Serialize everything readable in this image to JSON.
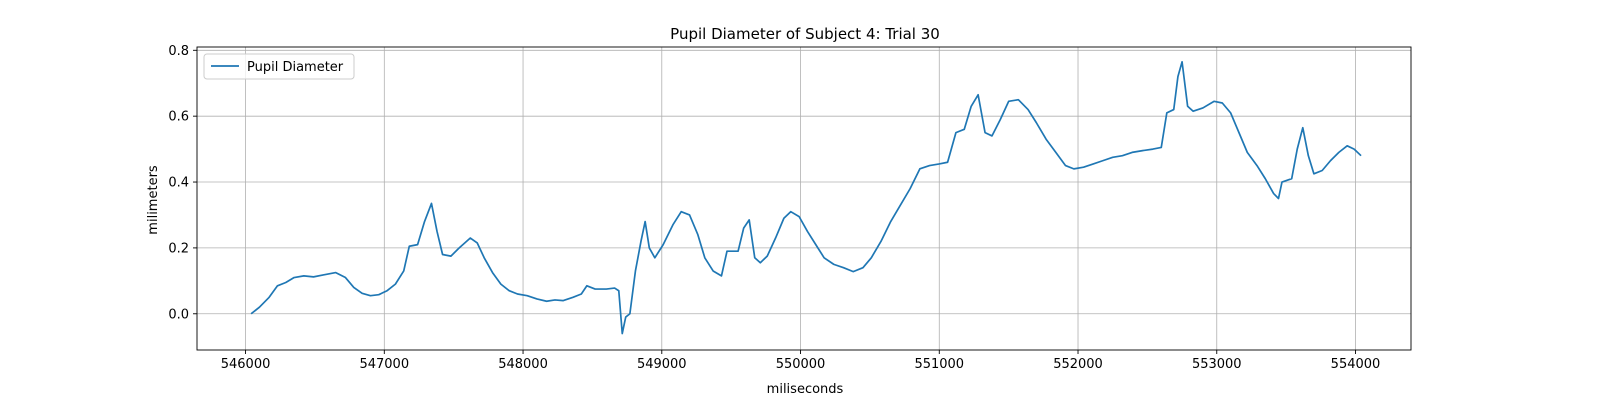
{
  "chart_data": {
    "type": "line",
    "title": "Pupil Diameter of Subject 4: Trial 30",
    "xlabel": "miliseconds",
    "ylabel": "milimeters",
    "xlim": [
      545650,
      554400
    ],
    "ylim": [
      -0.11,
      0.81
    ],
    "xticks": [
      546000,
      547000,
      548000,
      549000,
      550000,
      551000,
      552000,
      553000,
      554000
    ],
    "xtick_labels": [
      "546000",
      "547000",
      "548000",
      "549000",
      "550000",
      "551000",
      "552000",
      "553000",
      "554000"
    ],
    "yticks": [
      0.0,
      0.2,
      0.4,
      0.6,
      0.8
    ],
    "ytick_labels": [
      "0.0",
      "0.2",
      "0.4",
      "0.6",
      "0.8"
    ],
    "grid": true,
    "legend": {
      "placement": "top-left",
      "entries": [
        "Pupil Diameter"
      ]
    },
    "series": [
      {
        "name": "Pupil Diameter",
        "color": "#1f77b4",
        "points": [
          [
            546040,
            0.0
          ],
          [
            546100,
            0.02
          ],
          [
            546170,
            0.05
          ],
          [
            546230,
            0.085
          ],
          [
            546290,
            0.095
          ],
          [
            546350,
            0.11
          ],
          [
            546420,
            0.115
          ],
          [
            546490,
            0.112
          ],
          [
            546560,
            0.118
          ],
          [
            546650,
            0.125
          ],
          [
            546720,
            0.11
          ],
          [
            546780,
            0.08
          ],
          [
            546840,
            0.062
          ],
          [
            546900,
            0.055
          ],
          [
            546960,
            0.058
          ],
          [
            547020,
            0.07
          ],
          [
            547080,
            0.09
          ],
          [
            547140,
            0.13
          ],
          [
            547180,
            0.205
          ],
          [
            547240,
            0.21
          ],
          [
            547290,
            0.28
          ],
          [
            547340,
            0.335
          ],
          [
            547380,
            0.25
          ],
          [
            547420,
            0.18
          ],
          [
            547480,
            0.175
          ],
          [
            547540,
            0.2
          ],
          [
            547620,
            0.23
          ],
          [
            547670,
            0.215
          ],
          [
            547720,
            0.17
          ],
          [
            547780,
            0.125
          ],
          [
            547840,
            0.09
          ],
          [
            547900,
            0.07
          ],
          [
            547960,
            0.06
          ],
          [
            548030,
            0.055
          ],
          [
            548100,
            0.045
          ],
          [
            548170,
            0.038
          ],
          [
            548230,
            0.042
          ],
          [
            548290,
            0.04
          ],
          [
            548360,
            0.05
          ],
          [
            548420,
            0.06
          ],
          [
            548460,
            0.085
          ],
          [
            548520,
            0.075
          ],
          [
            548600,
            0.075
          ],
          [
            548660,
            0.078
          ],
          [
            548690,
            0.07
          ],
          [
            548715,
            -0.06
          ],
          [
            548740,
            -0.01
          ],
          [
            548770,
            0.0
          ],
          [
            548810,
            0.13
          ],
          [
            548850,
            0.22
          ],
          [
            548880,
            0.28
          ],
          [
            548910,
            0.2
          ],
          [
            548950,
            0.17
          ],
          [
            549010,
            0.21
          ],
          [
            549080,
            0.27
          ],
          [
            549140,
            0.31
          ],
          [
            549200,
            0.3
          ],
          [
            549260,
            0.24
          ],
          [
            549310,
            0.17
          ],
          [
            549370,
            0.13
          ],
          [
            549430,
            0.115
          ],
          [
            549470,
            0.19
          ],
          [
            549550,
            0.19
          ],
          [
            549590,
            0.26
          ],
          [
            549630,
            0.285
          ],
          [
            549670,
            0.17
          ],
          [
            549710,
            0.155
          ],
          [
            549760,
            0.175
          ],
          [
            549820,
            0.23
          ],
          [
            549880,
            0.29
          ],
          [
            549930,
            0.31
          ],
          [
            549990,
            0.295
          ],
          [
            550050,
            0.25
          ],
          [
            550110,
            0.21
          ],
          [
            550170,
            0.17
          ],
          [
            550240,
            0.15
          ],
          [
            550310,
            0.14
          ],
          [
            550380,
            0.128
          ],
          [
            550450,
            0.14
          ],
          [
            550510,
            0.17
          ],
          [
            550580,
            0.22
          ],
          [
            550650,
            0.28
          ],
          [
            550720,
            0.33
          ],
          [
            550790,
            0.38
          ],
          [
            550860,
            0.44
          ],
          [
            550930,
            0.45
          ],
          [
            551000,
            0.455
          ],
          [
            551060,
            0.46
          ],
          [
            551120,
            0.55
          ],
          [
            551180,
            0.56
          ],
          [
            551230,
            0.63
          ],
          [
            551280,
            0.665
          ],
          [
            551330,
            0.55
          ],
          [
            551380,
            0.54
          ],
          [
            551440,
            0.59
          ],
          [
            551500,
            0.645
          ],
          [
            551570,
            0.65
          ],
          [
            551640,
            0.62
          ],
          [
            551700,
            0.58
          ],
          [
            551770,
            0.53
          ],
          [
            551840,
            0.49
          ],
          [
            551910,
            0.45
          ],
          [
            551970,
            0.44
          ],
          [
            552040,
            0.445
          ],
          [
            552110,
            0.455
          ],
          [
            552180,
            0.465
          ],
          [
            552250,
            0.475
          ],
          [
            552320,
            0.48
          ],
          [
            552390,
            0.49
          ],
          [
            552460,
            0.495
          ],
          [
            552540,
            0.5
          ],
          [
            552600,
            0.505
          ],
          [
            552640,
            0.61
          ],
          [
            552690,
            0.62
          ],
          [
            552720,
            0.72
          ],
          [
            552750,
            0.765
          ],
          [
            552790,
            0.63
          ],
          [
            552830,
            0.615
          ],
          [
            552900,
            0.625
          ],
          [
            552980,
            0.645
          ],
          [
            553040,
            0.64
          ],
          [
            553100,
            0.61
          ],
          [
            553160,
            0.55
          ],
          [
            553220,
            0.49
          ],
          [
            553290,
            0.45
          ],
          [
            553350,
            0.41
          ],
          [
            553410,
            0.365
          ],
          [
            553445,
            0.35
          ],
          [
            553470,
            0.4
          ],
          [
            553540,
            0.41
          ],
          [
            553580,
            0.5
          ],
          [
            553620,
            0.565
          ],
          [
            553660,
            0.48
          ],
          [
            553700,
            0.425
          ],
          [
            553760,
            0.435
          ],
          [
            553820,
            0.465
          ],
          [
            553880,
            0.49
          ],
          [
            553940,
            0.51
          ],
          [
            553990,
            0.5
          ],
          [
            554040,
            0.48
          ]
        ]
      }
    ]
  }
}
